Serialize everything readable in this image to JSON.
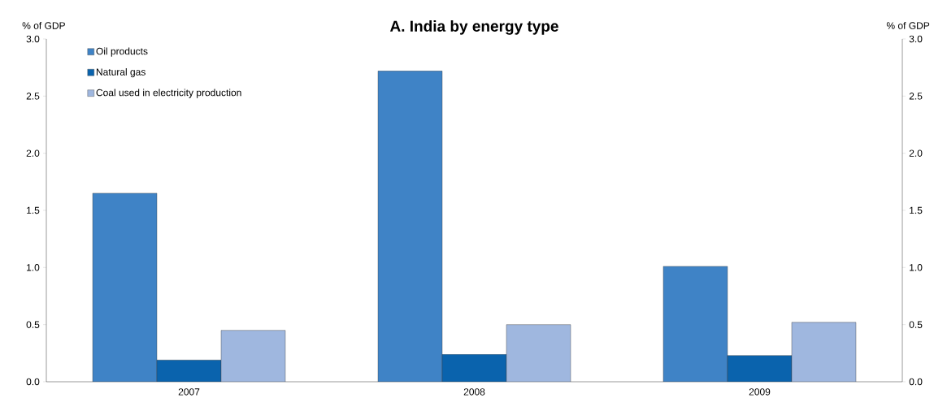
{
  "chart_data": {
    "type": "bar",
    "title": "A. India by energy type",
    "ylabel": "% of GDP",
    "y2label": "% of GDP",
    "categories": [
      "2007",
      "2008",
      "2009"
    ],
    "series": [
      {
        "name": "Oil products",
        "color": "#3f83c6",
        "values": [
          1.65,
          2.72,
          1.01
        ]
      },
      {
        "name": "Natural gas",
        "color": "#0a63ad",
        "values": [
          0.19,
          0.24,
          0.23
        ]
      },
      {
        "name": "Coal used in electricity production",
        "color": "#9fb7df",
        "values": [
          0.45,
          0.5,
          0.52
        ]
      }
    ],
    "ylim": [
      0,
      3
    ],
    "yticks": [
      {
        "value": 0,
        "label": "0.0"
      },
      {
        "value": 0.5,
        "label": "0.5"
      },
      {
        "value": 1,
        "label": "1.0"
      },
      {
        "value": 1.5,
        "label": "1.5"
      },
      {
        "value": 2,
        "label": "2.0"
      },
      {
        "value": 2.5,
        "label": "2.5"
      },
      {
        "value": 3,
        "label": "3.0"
      }
    ],
    "y2lim": [
      0,
      3
    ],
    "y2ticks": [
      {
        "value": 0,
        "label": "0.0"
      },
      {
        "value": 0.5,
        "label": "0.5"
      },
      {
        "value": 1,
        "label": "1.0"
      },
      {
        "value": 1.5,
        "label": "1.5"
      },
      {
        "value": 2,
        "label": "2.0"
      },
      {
        "value": 2.5,
        "label": "2.5"
      },
      {
        "value": 3,
        "label": "3.0"
      }
    ],
    "legend": "top left",
    "grid": false
  }
}
